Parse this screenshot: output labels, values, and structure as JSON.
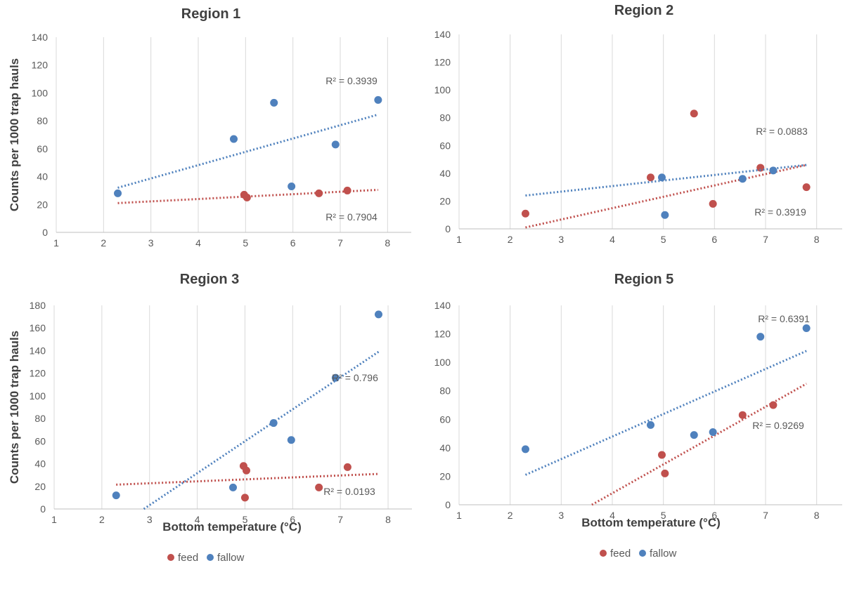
{
  "colors": {
    "feed": "#C0504D",
    "fallow": "#4F81BD",
    "grid": "#d9d9d9"
  },
  "legend_icon": "filled-circle-marker",
  "chart_data": [
    {
      "type": "scatter",
      "title": "Region 1",
      "xlabel": "",
      "ylabel": "Counts per 1000 trap hauls",
      "xlim": [
        1,
        8.5
      ],
      "ylim": [
        0,
        140
      ],
      "xticks": [
        1,
        2,
        3,
        4,
        5,
        6,
        7,
        8
      ],
      "yticks": [
        0,
        20,
        40,
        60,
        80,
        100,
        120,
        140
      ],
      "grid": "vertical",
      "legend": "none",
      "series": [
        {
          "name": "feed",
          "points": [
            [
              4.97,
              27
            ],
            [
              5.03,
              25
            ],
            [
              6.55,
              28
            ],
            [
              7.15,
              30
            ]
          ],
          "trend": [
            [
              2.3,
              21
            ],
            [
              7.8,
              30.5
            ]
          ],
          "r2_label": "R² = 0.7904"
        },
        {
          "name": "fallow",
          "points": [
            [
              2.3,
              28
            ],
            [
              4.75,
              67
            ],
            [
              5.6,
              93
            ],
            [
              5.97,
              33
            ],
            [
              6.9,
              63
            ],
            [
              7.8,
              95
            ]
          ],
          "trend": [
            [
              2.3,
              32
            ],
            [
              7.8,
              84.5
            ]
          ],
          "r2_label": "R² = 0.3939"
        }
      ]
    },
    {
      "type": "scatter",
      "title": "Region 2",
      "xlabel": "",
      "ylabel": "",
      "xlim": [
        1,
        8.5
      ],
      "ylim": [
        0,
        140
      ],
      "xticks": [
        1,
        2,
        3,
        4,
        5,
        6,
        7,
        8
      ],
      "yticks": [
        0,
        20,
        40,
        60,
        80,
        100,
        120,
        140
      ],
      "grid": "vertical",
      "legend": "bottom",
      "series": [
        {
          "name": "feed",
          "points": [
            [
              2.3,
              11
            ],
            [
              4.75,
              37
            ],
            [
              5.6,
              83
            ],
            [
              5.97,
              18
            ],
            [
              6.9,
              44
            ],
            [
              7.8,
              30
            ]
          ],
          "trend": [
            [
              2.3,
              1
            ],
            [
              7.8,
              46
            ]
          ],
          "r2_label": "R² = 0.3919"
        },
        {
          "name": "fallow",
          "points": [
            [
              4.97,
              37
            ],
            [
              5.03,
              10
            ],
            [
              6.55,
              36
            ],
            [
              7.15,
              42
            ]
          ],
          "trend": [
            [
              2.3,
              24
            ],
            [
              7.8,
              46
            ]
          ],
          "r2_label": "R² = 0.0883"
        }
      ]
    },
    {
      "type": "scatter",
      "title": "Region 3",
      "xlabel": "Bottom temperature (°C)",
      "ylabel": "Counts per 1000 trap hauls",
      "xlim": [
        1,
        8.5
      ],
      "ylim": [
        0,
        180
      ],
      "xticks": [
        1,
        2,
        3,
        4,
        5,
        6,
        7,
        8
      ],
      "yticks": [
        0,
        20,
        40,
        60,
        80,
        100,
        120,
        140,
        160,
        180
      ],
      "grid": "vertical",
      "legend": "bottom",
      "series": [
        {
          "name": "feed",
          "points": [
            [
              4.97,
              38
            ],
            [
              5.03,
              34
            ],
            [
              5.0,
              10
            ],
            [
              6.55,
              19
            ],
            [
              7.15,
              37
            ]
          ],
          "trend": [
            [
              2.3,
              21.5
            ],
            [
              7.8,
              31
            ]
          ],
          "r2_label": "R² = 0.0193"
        },
        {
          "name": "fallow",
          "points": [
            [
              2.3,
              12
            ],
            [
              4.75,
              19
            ],
            [
              5.6,
              76
            ],
            [
              5.97,
              61
            ],
            [
              6.9,
              116
            ],
            [
              7.8,
              172
            ]
          ],
          "trend": [
            [
              2.88,
              0
            ],
            [
              7.8,
              139
            ]
          ],
          "r2_label": "R² = 0.796"
        }
      ]
    },
    {
      "type": "scatter",
      "title": "Region 5",
      "xlabel": "Bottom temperature (°C)",
      "ylabel": "",
      "xlim": [
        1,
        8.5
      ],
      "ylim": [
        0,
        140
      ],
      "xticks": [
        1,
        2,
        3,
        4,
        5,
        6,
        7,
        8
      ],
      "yticks": [
        0,
        20,
        40,
        60,
        80,
        100,
        120,
        140
      ],
      "grid": "vertical",
      "legend": "bottom",
      "series": [
        {
          "name": "feed",
          "points": [
            [
              4.97,
              35
            ],
            [
              5.03,
              22
            ],
            [
              6.55,
              63
            ],
            [
              7.15,
              70
            ]
          ],
          "trend": [
            [
              3.6,
              0
            ],
            [
              7.8,
              85
            ]
          ],
          "r2_label": "R² = 0.9269"
        },
        {
          "name": "fallow",
          "points": [
            [
              2.3,
              39
            ],
            [
              4.75,
              56
            ],
            [
              5.6,
              49
            ],
            [
              5.97,
              51
            ],
            [
              6.9,
              118
            ],
            [
              7.8,
              124
            ]
          ],
          "trend": [
            [
              2.3,
              21
            ],
            [
              7.8,
              108
            ]
          ],
          "r2_label": "R² = 0.6391"
        }
      ]
    }
  ],
  "legends": [
    {
      "items": [
        "feed",
        "fallow"
      ]
    },
    {
      "items": [
        "feed",
        "fallow"
      ]
    }
  ]
}
